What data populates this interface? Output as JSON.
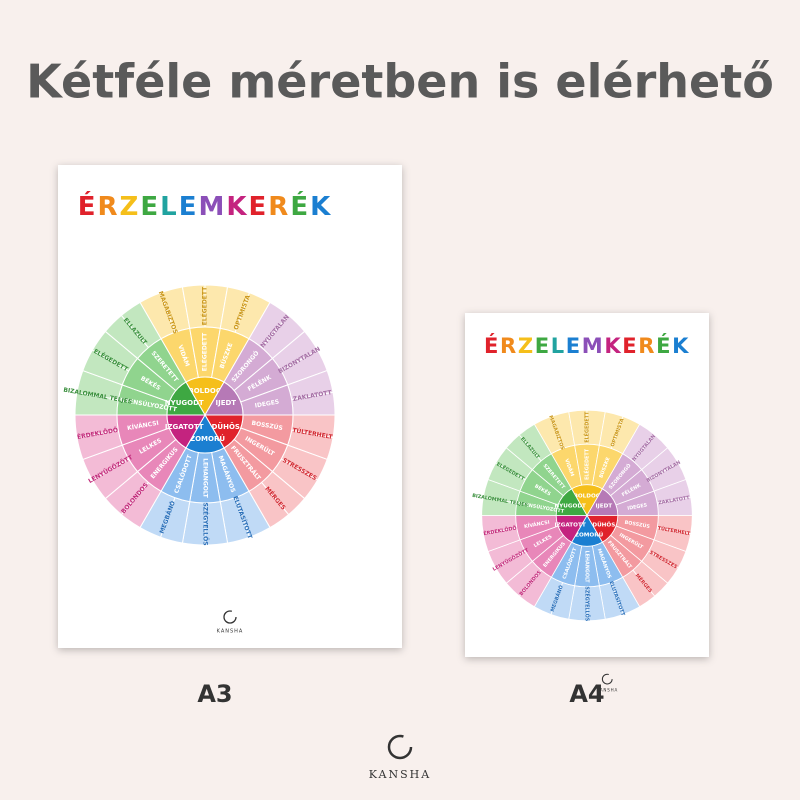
{
  "header": {
    "title": "Kétféle méretben is elérhető"
  },
  "poster": {
    "title": "ÉRZELEMKERÉK",
    "brand": "KANSHA"
  },
  "wheel": {
    "sectors": [
      {
        "core": "BOLDOG",
        "middle": [
          "VIDÁM",
          "ELÉGEDETT",
          "BÜSZKE"
        ],
        "outer": [
          "MAGABIZTOS",
          "ELÉGEDETT",
          "OPTIMISTA"
        ]
      },
      {
        "core": "IJEDT",
        "middle": [
          "SZORONGÓ",
          "FÉLÉNK",
          "IDEGES"
        ],
        "outer": [
          "NYUGTALAN",
          "BIZONYTALAN",
          "ZAKLATOTT"
        ]
      },
      {
        "core": "DÜHÖS",
        "middle": [
          "BOSSZÚS",
          "INGERÜLT",
          "FRUSZTRÁLT"
        ],
        "outer": [
          "TÚLTERHELT",
          "STRESSZES",
          "MÉRGES"
        ]
      },
      {
        "core": "SZOMORÚ",
        "middle": [
          "MAGÁNYOS",
          "LEHANGOLT",
          "CSALÓDOTT"
        ],
        "outer": [
          "ELUTASÍTOTT",
          "SZÉGYELLŐS",
          "MEGBÁNÓ"
        ]
      },
      {
        "core": "IZGATOTT",
        "middle": [
          "ENERGIKUS",
          "LELKES",
          "KÍVÁNCSI"
        ],
        "outer": [
          "BOLONDOS",
          "LENYŰGÖZÖTT",
          "ÉRDEKLŐDŐ"
        ]
      },
      {
        "core": "NYUGODT",
        "middle": [
          "KIEGYENSÚLYOZOTT",
          "BÉKÉS",
          "SZERETETT"
        ],
        "outer": [
          "BIZALOMMAL TELJES",
          "ELÉGEDETT",
          "ELLAZULT"
        ]
      }
    ]
  },
  "sizes": {
    "a3": "A3",
    "a4": "A4"
  },
  "footer": {
    "brand": "KANSHA"
  }
}
